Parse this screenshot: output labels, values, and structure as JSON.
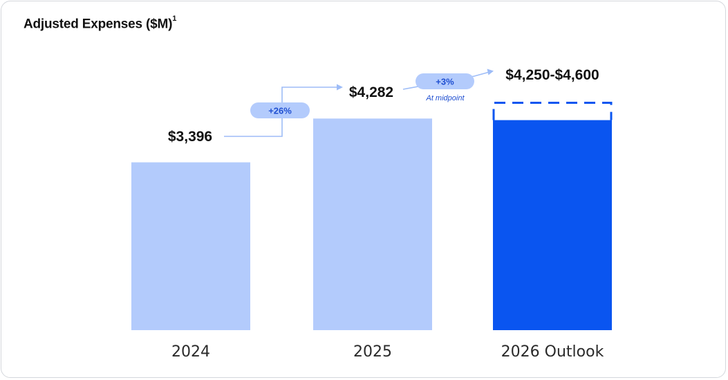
{
  "title": "Adjusted Expenses ($M)",
  "title_footnote": "1",
  "colors": {
    "light_bar": "#b3cbfc",
    "dark_bar": "#0a55f0",
    "pill_bg": "#b3cbfc",
    "pill_text": "#1f4fd1",
    "connector": "#9dbcf7",
    "text": "#111111"
  },
  "chart_data": {
    "type": "bar",
    "categories": [
      "2024",
      "2025",
      "2026 Outlook"
    ],
    "values": [
      3396,
      4282,
      4250
    ],
    "value_labels": [
      "$3,396",
      "$4,282",
      "$4,250-$4,600"
    ],
    "range": {
      "category": "2026 Outlook",
      "low": 4250,
      "high": 4600
    },
    "ylim": [
      0,
      4600
    ],
    "changes": [
      {
        "from": "2024",
        "to": "2025",
        "label": "+26%"
      },
      {
        "from": "2025",
        "to": "2026 Outlook",
        "label": "+3%",
        "note": "At midpoint"
      }
    ],
    "title": "Adjusted Expenses ($M)",
    "xlabel": "",
    "ylabel": "",
    "grid": false
  }
}
